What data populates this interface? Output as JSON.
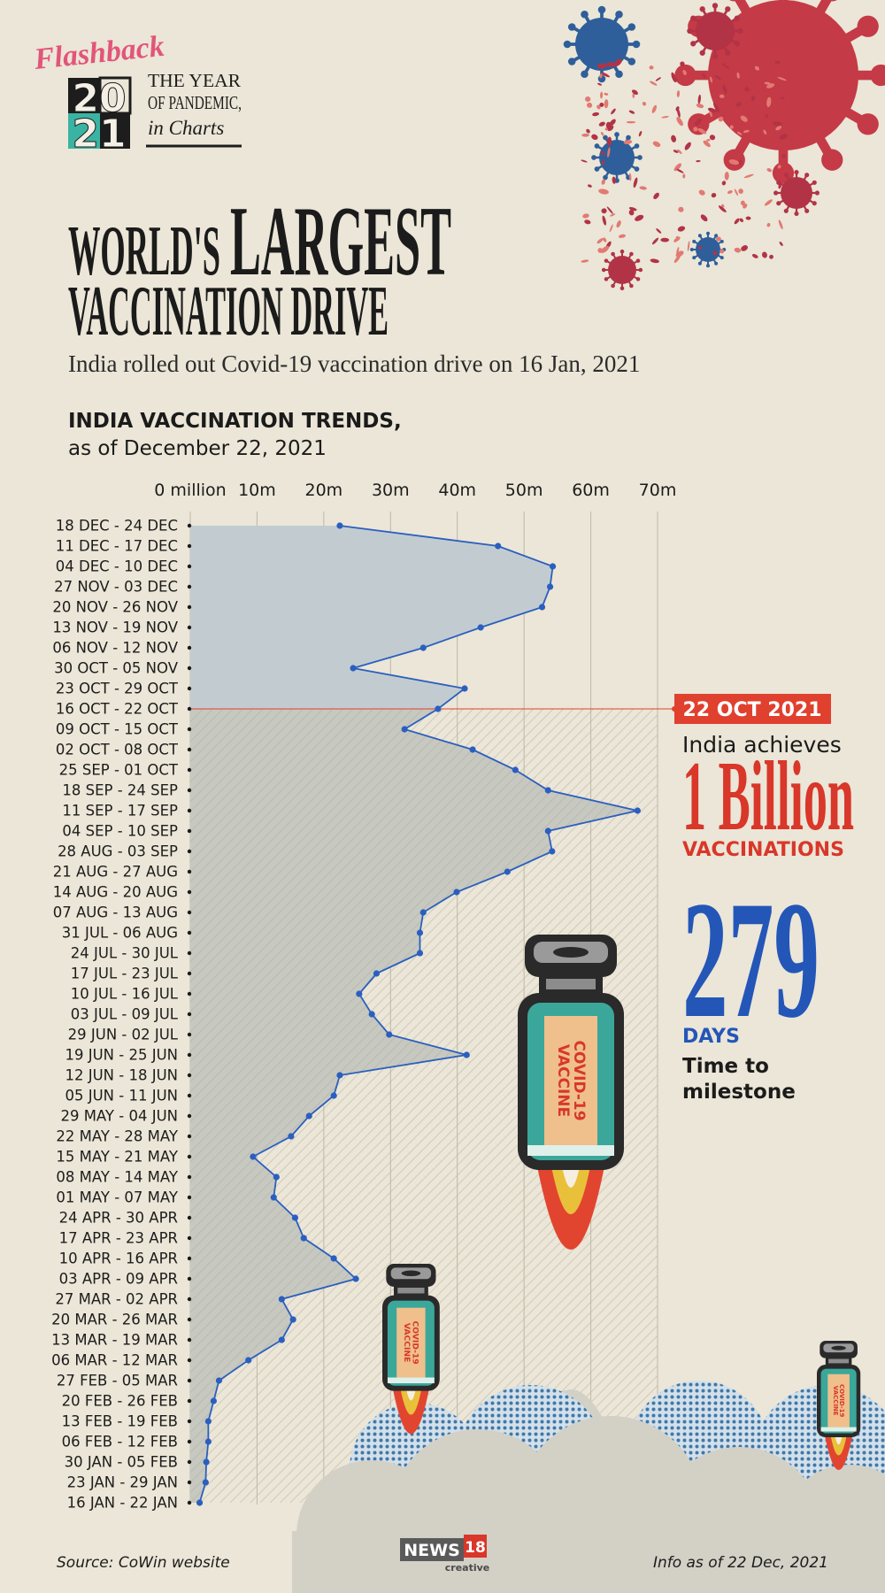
{
  "header": {
    "flashback": "Flashback",
    "year_top": "20",
    "year_bottom": "21",
    "series_line1": "THE YEAR",
    "series_line2": "OF PANDEMIC,",
    "series_line3": "in Charts"
  },
  "title": {
    "line1a": "WORLD'S",
    "line1b": "LARGEST",
    "line2": "VACCINATION DRIVE"
  },
  "subtitle": "India rolled out Covid-19 vaccination drive on 16 Jan, 2021",
  "chart_data": {
    "type": "line",
    "orientation": "horizontal",
    "title": "INDIA VACCINATION TRENDS,",
    "subtitle": "as of December 22, 2021",
    "categories": [
      "18 DEC - 24 DEC",
      "11 DEC - 17 DEC",
      "04 DEC - 10 DEC",
      "27 NOV - 03 DEC",
      "20 NOV - 26 NOV",
      "13 NOV - 19 NOV",
      "06 NOV - 12 NOV",
      "30 OCT - 05 NOV",
      "23 OCT - 29 OCT",
      "16 OCT - 22 OCT",
      "09 OCT - 15 OCT",
      "02 OCT - 08 OCT",
      "25 SEP - 01 OCT",
      "18 SEP - 24 SEP",
      "11 SEP - 17 SEP",
      "04 SEP - 10 SEP",
      "28 AUG - 03 SEP",
      "21 AUG - 27 AUG",
      "14 AUG - 20 AUG",
      "07 AUG - 13 AUG",
      "31 JUL - 06 AUG",
      "24 JUL - 30 JUL",
      "17 JUL - 23 JUL",
      "10 JUL - 16 JUL",
      "03 JUL - 09 JUL",
      "29 JUN - 02 JUL",
      "19 JUN - 25 JUN",
      "12 JUN - 18 JUN",
      "05 JUN - 11 JUN",
      "29 MAY - 04 JUN",
      "22 MAY - 28 MAY",
      "15 MAY - 21 MAY",
      "08 MAY - 14 MAY",
      "01 MAY - 07 MAY",
      "24 APR - 30 APR",
      "17 APR - 23 APR",
      "10 APR - 16 APR",
      "03 APR - 09 APR",
      "27 MAR - 02 APR",
      "20 MAR - 26 MAR",
      "13 MAR - 19 MAR",
      "06 MAR - 12 MAR",
      "27 FEB - 05 MAR",
      "20 FEB - 26 FEB",
      "13 FEB - 19 FEB",
      "06 FEB - 12 FEB",
      "30 JAN - 05 FEB",
      "23 JAN - 29 JAN",
      "16 JAN - 22 JAN"
    ],
    "values": [
      22.4,
      46.1,
      54.3,
      53.9,
      52.7,
      43.5,
      34.9,
      24.4,
      41.1,
      37.1,
      32.1,
      42.3,
      48.7,
      53.6,
      67.0,
      53.6,
      54.2,
      47.5,
      39.9,
      34.9,
      34.4,
      34.4,
      27.9,
      25.3,
      27.2,
      29.8,
      41.4,
      22.4,
      21.5,
      17.8,
      15.1,
      9.4,
      12.9,
      12.5,
      15.7,
      17.0,
      21.5,
      24.8,
      13.7,
      15.4,
      13.7,
      8.7,
      4.3,
      3.5,
      2.7,
      2.7,
      2.4,
      2.3,
      1.4
    ],
    "color": "#2b5fbf",
    "xlim": [
      0,
      70
    ],
    "xticks": [
      {
        "value": 0,
        "label": "0 million"
      },
      {
        "value": 10,
        "label": "10m"
      },
      {
        "value": 20,
        "label": "20m"
      },
      {
        "value": 30,
        "label": "30m"
      },
      {
        "value": 40,
        "label": "40m"
      },
      {
        "value": 50,
        "label": "50m"
      },
      {
        "value": 60,
        "label": "60m"
      },
      {
        "value": 70,
        "label": "70m"
      }
    ],
    "grid": true,
    "annotation": {
      "label": "22 OCT 2021",
      "category": "16 OCT - 22 OCT",
      "color": "#e0402e"
    }
  },
  "milestone": {
    "lead": "India achieves",
    "count": "1 Billion",
    "unit": "VACCINATIONS",
    "days": "279",
    "days_unit": "DAYS",
    "caption_1": "Time to",
    "caption_2": "milestone"
  },
  "vaccine_label": {
    "line1": "COVID-19",
    "line2": "VACCINE"
  },
  "footer": {
    "source": "Source: CoWin website",
    "brand": "NEWS",
    "brand_num": "18",
    "brand_sub": "creative",
    "info": "Info as of 22 Dec, 2021"
  }
}
